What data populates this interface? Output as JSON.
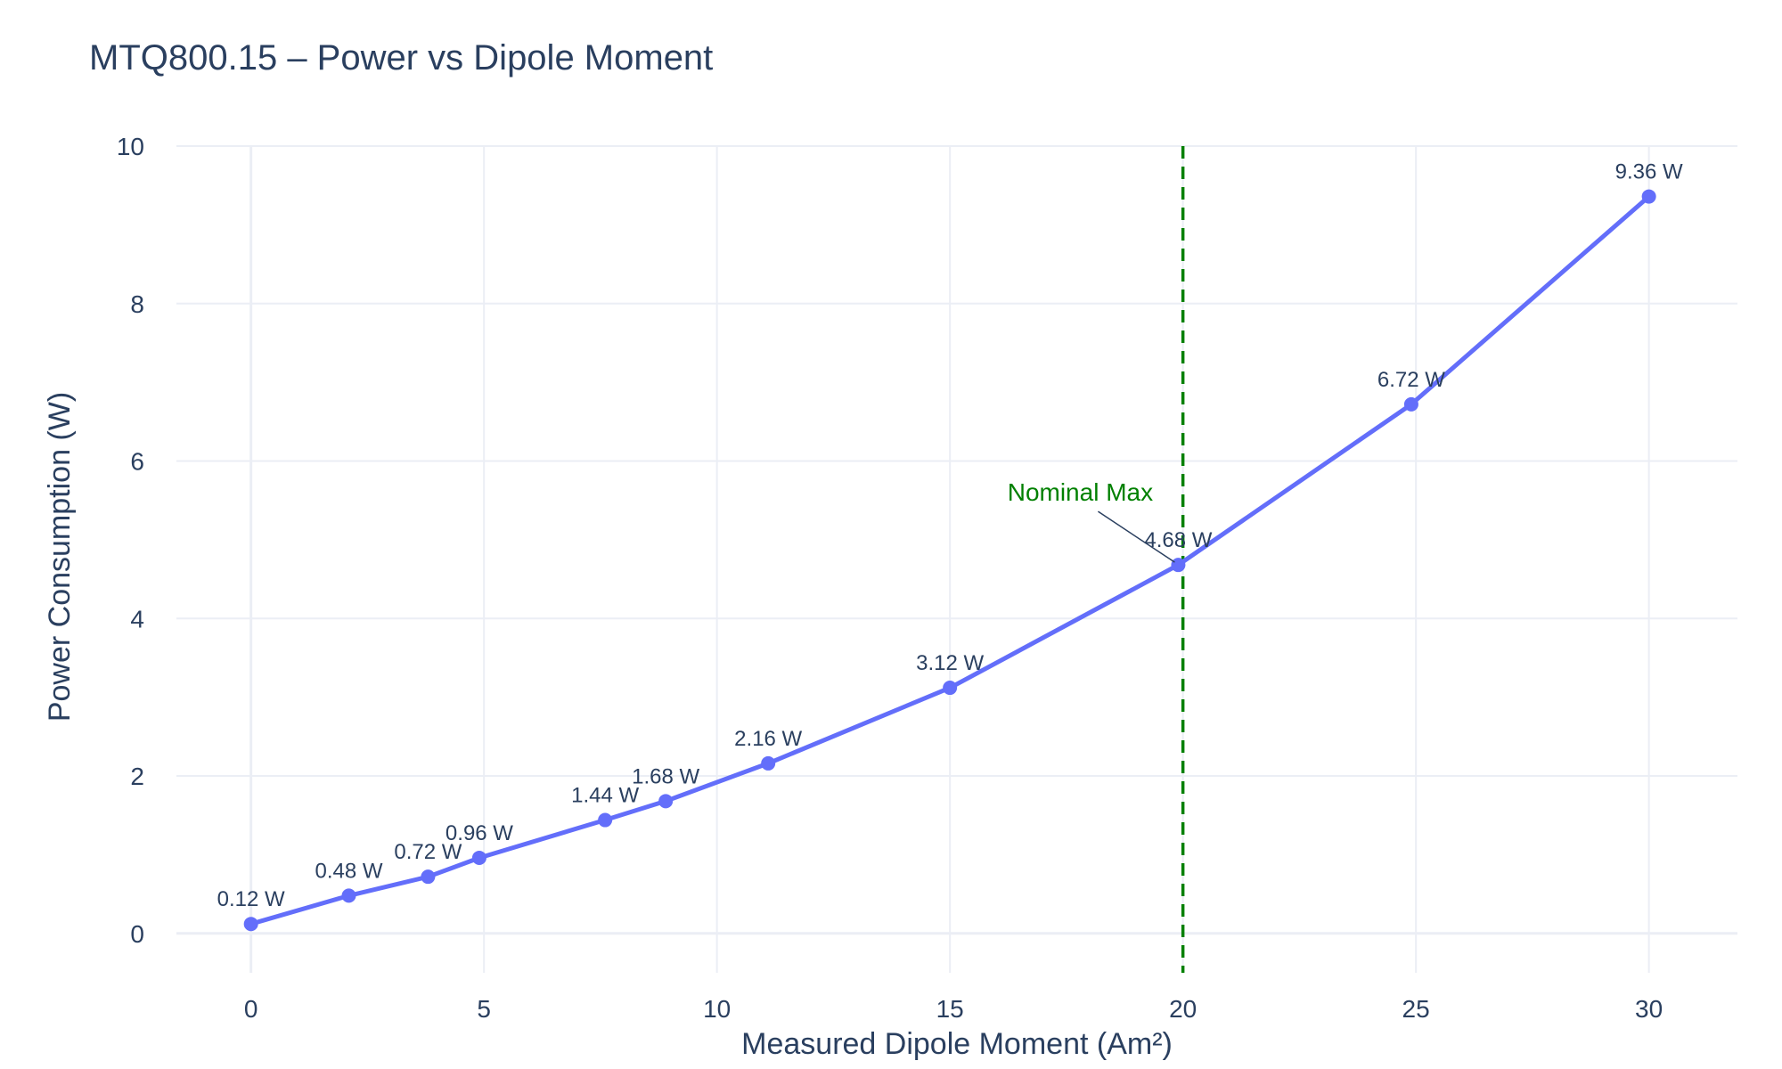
{
  "chart_data": {
    "type": "line",
    "title": "MTQ800.15 – Power vs Dipole Moment",
    "xlabel": "Measured Dipole Moment (Am²)",
    "ylabel": "Power Consumption (W)",
    "xlim": [
      -1.6,
      31.9
    ],
    "ylim": [
      -0.5,
      10
    ],
    "xticks": [
      0,
      5,
      10,
      15,
      20,
      25,
      30
    ],
    "yticks": [
      0,
      2,
      4,
      6,
      8,
      10
    ],
    "grid": true,
    "series": [
      {
        "x": [
          0,
          2.1,
          3.8,
          4.9,
          7.6,
          8.9,
          11.1,
          15.0,
          19.9,
          24.9,
          30.0
        ],
        "y": [
          0.12,
          0.48,
          0.72,
          0.96,
          1.44,
          1.68,
          2.16,
          3.12,
          4.68,
          6.72,
          9.36
        ],
        "labels": [
          "0.12 W",
          "0.48 W",
          "0.72 W",
          "0.96 W",
          "1.44 W",
          "1.68 W",
          "2.16 W",
          "3.12 W",
          "4.68 W",
          "6.72 W",
          "9.36 W"
        ],
        "color": "#636efa"
      }
    ],
    "reference_line": {
      "x": 20,
      "color": "#008000",
      "style": "dashed"
    },
    "annotation": {
      "text": "Nominal Max",
      "x": 19.9,
      "y": 4.68,
      "color": "#008000"
    }
  }
}
